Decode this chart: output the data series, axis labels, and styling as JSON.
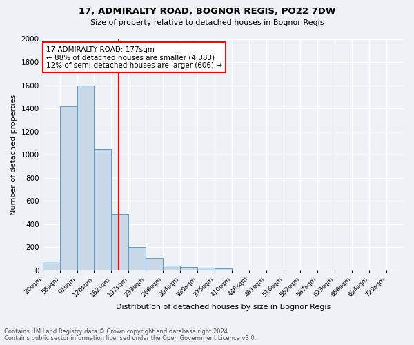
{
  "title1": "17, ADMIRALTY ROAD, BOGNOR REGIS, PO22 7DW",
  "title2": "Size of property relative to detached houses in Bognor Regis",
  "xlabel": "Distribution of detached houses by size in Bognor Regis",
  "ylabel": "Number of detached properties",
  "bin_labels": [
    "20sqm",
    "55sqm",
    "91sqm",
    "126sqm",
    "162sqm",
    "197sqm",
    "233sqm",
    "268sqm",
    "304sqm",
    "339sqm",
    "375sqm",
    "410sqm",
    "446sqm",
    "481sqm",
    "516sqm",
    "552sqm",
    "587sqm",
    "623sqm",
    "658sqm",
    "694sqm",
    "729sqm"
  ],
  "bar_heights": [
    80,
    1420,
    1600,
    1050,
    490,
    200,
    105,
    42,
    28,
    22,
    18,
    0,
    0,
    0,
    0,
    0,
    0,
    0,
    0,
    0,
    0
  ],
  "bar_color": "#c9d9e8",
  "bar_edge_color": "#5a9ec8",
  "vline_color": "red",
  "annotation_text": "17 ADMIRALTY ROAD: 177sqm\n← 88% of detached houses are smaller (4,383)\n12% of semi-detached houses are larger (606) →",
  "annotation_box_color": "white",
  "annotation_box_edge": "red",
  "ylim": [
    0,
    2000
  ],
  "yticks": [
    0,
    200,
    400,
    600,
    800,
    1000,
    1200,
    1400,
    1600,
    1800,
    2000
  ],
  "footer1": "Contains HM Land Registry data © Crown copyright and database right 2024.",
  "footer2": "Contains public sector information licensed under the Open Government Licence v3.0.",
  "bg_color": "#eef2f7",
  "grid_color": "#ffffff"
}
